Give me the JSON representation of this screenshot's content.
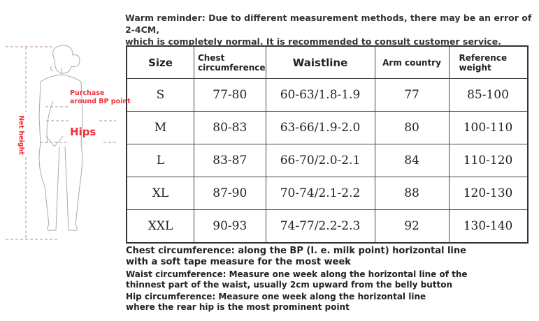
{
  "reminder": {
    "line1": "Warm reminder: Due to different measurement methods, there may be an error of 2-4CM,",
    "line2": "which is completely normal. It is recommended to consult customer service."
  },
  "figure": {
    "bust_label_1": "Purchase",
    "bust_label_2": "around BP point",
    "hips_label": "Hips",
    "height_label": "Net height",
    "accent_color": "#f0303c"
  },
  "table": {
    "headers": [
      "Size",
      "Chest circumference",
      "Waistline",
      "Arm country",
      "Reference weight"
    ],
    "rows": [
      [
        "S",
        "77-80",
        "60-63/1.8-1.9",
        "77",
        "85-100"
      ],
      [
        "M",
        "80-83",
        "63-66/1.9-2.0",
        "80",
        "100-110"
      ],
      [
        "L",
        "83-87",
        "66-70/2.0-2.1",
        "84",
        "110-120"
      ],
      [
        "XL",
        "87-90",
        "70-74/2.1-2.2",
        "88",
        "120-130"
      ],
      [
        "XXL",
        "90-93",
        "74-77/2.2-2.3",
        "92",
        "130-140"
      ]
    ]
  },
  "notes": {
    "chest_1": "Chest circumference: along the BP (I. e. milk point) horizontal line",
    "chest_2": "with a soft tape measure for the most week",
    "waist_1": "Waist circumference: Measure one week along the horizontal line of the",
    "waist_2": "thinnest part of the waist, usually 2cm upward from the belly button",
    "hip_1": "Hip circumference: Measure one week along the horizontal line",
    "hip_2": "where the rear hip is the most prominent point"
  }
}
